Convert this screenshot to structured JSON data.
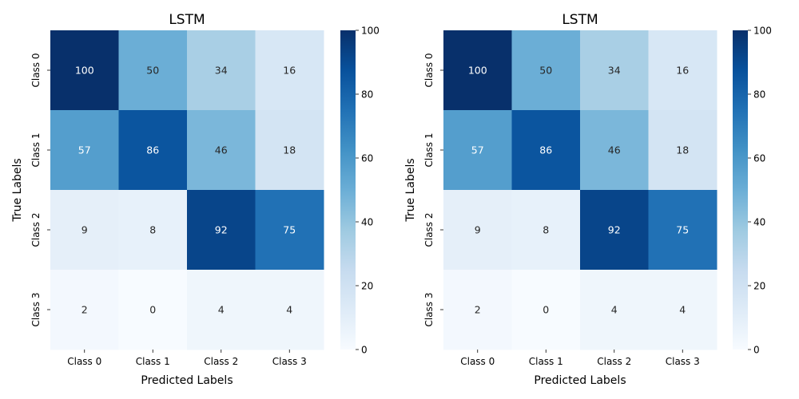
{
  "chart_data": [
    {
      "type": "heatmap",
      "title": "LSTM",
      "xlabel": "Predicted Labels",
      "ylabel": "True Labels",
      "x_categories": [
        "Class 0",
        "Class 1",
        "Class 2",
        "Class 3"
      ],
      "y_categories": [
        "Class 0",
        "Class 1",
        "Class 2",
        "Class 3"
      ],
      "values": [
        [
          100,
          50,
          34,
          16
        ],
        [
          57,
          86,
          46,
          18
        ],
        [
          9,
          8,
          92,
          75
        ],
        [
          2,
          0,
          4,
          4
        ]
      ],
      "colorbar": {
        "min": 0,
        "max": 100,
        "ticks": [
          0,
          20,
          40,
          60,
          80,
          100
        ]
      },
      "colormap": "Blues",
      "annotated": true
    },
    {
      "type": "heatmap",
      "title": "LSTM",
      "xlabel": "Predicted Labels",
      "ylabel": "True Labels",
      "x_categories": [
        "Class 0",
        "Class 1",
        "Class 2",
        "Class 3"
      ],
      "y_categories": [
        "Class 0",
        "Class 1",
        "Class 2",
        "Class 3"
      ],
      "values": [
        [
          100,
          50,
          34,
          16
        ],
        [
          57,
          86,
          46,
          18
        ],
        [
          9,
          8,
          92,
          75
        ],
        [
          2,
          0,
          4,
          4
        ]
      ],
      "colorbar": {
        "min": 0,
        "max": 100,
        "ticks": [
          0,
          20,
          40,
          60,
          80,
          100
        ]
      },
      "colormap": "Blues",
      "annotated": true
    }
  ]
}
